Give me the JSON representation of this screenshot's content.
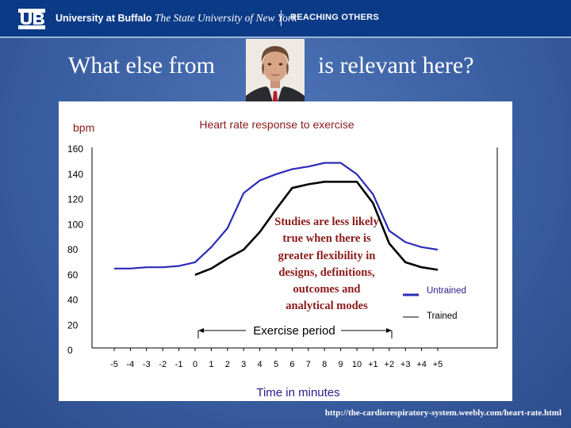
{
  "header": {
    "university": "University at Buffalo",
    "subtitle": "The State University of New York",
    "tagline": "REACHING OTHERS"
  },
  "headline": {
    "left": "What else from",
    "right": "is relevant here?"
  },
  "source_url": "http://the-cardiorespiratory-system.weebly.com/heart-rate.html",
  "colors": {
    "untrained": "#2b2bb8",
    "trained": "#000000",
    "annotation": "#8b1a1a",
    "title": "#8b1a1a",
    "xlabel": "#2b1a8a"
  },
  "chart_data": {
    "type": "line",
    "title": "Heart rate response to exercise",
    "ylabel": "bpm",
    "xlabel": "Time in minutes",
    "ylim": [
      0,
      160
    ],
    "yticks": [
      0,
      20,
      40,
      60,
      80,
      100,
      120,
      140,
      160
    ],
    "categories": [
      "-5",
      "-4",
      "-3",
      "-2",
      "-1",
      "0",
      "1",
      "2",
      "3",
      "4",
      "5",
      "6",
      "7",
      "8",
      "9",
      "10",
      "+1",
      "+2",
      "+3",
      "+4",
      "+5"
    ],
    "series": [
      {
        "name": "Untrained",
        "values": [
          65,
          65,
          66,
          66,
          67,
          70,
          82,
          97,
          125,
          135,
          140,
          144,
          146,
          149,
          149,
          140,
          124,
          95,
          86,
          82,
          80
        ]
      },
      {
        "name": "Trained",
        "values": [
          null,
          null,
          null,
          null,
          null,
          60,
          65,
          73,
          80,
          94,
          112,
          129,
          132,
          134,
          134,
          134,
          117,
          85,
          70,
          66,
          64
        ]
      }
    ],
    "annotation": "Studies are less likely true when there is greater flexibility in designs, definitions, outcomes and analytical modes",
    "span_label": "Exercise period",
    "legend": "right"
  }
}
